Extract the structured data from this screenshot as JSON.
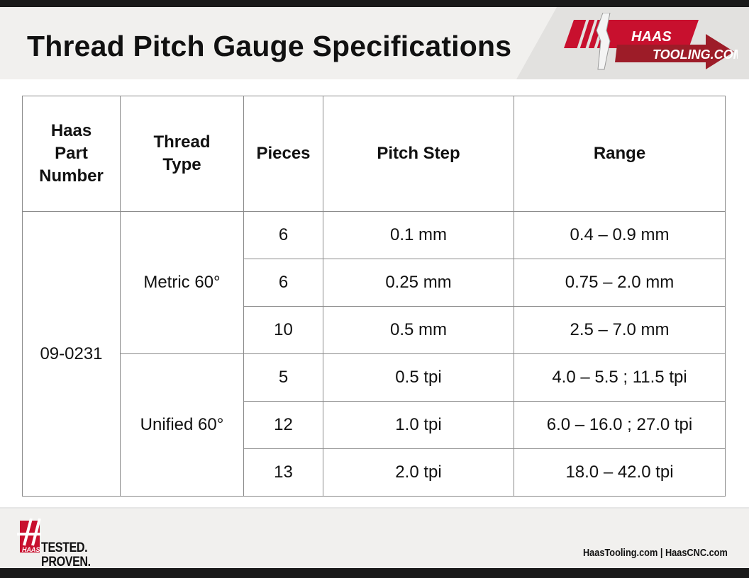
{
  "header": {
    "title": "Thread Pitch Gauge Specifications",
    "logo_text": "HAAS TOOLING.COM"
  },
  "table": {
    "columns": [
      "Haas Part Number",
      "Thread Type",
      "Pieces",
      "Pitch Step",
      "Range"
    ],
    "part_number": "09-0231",
    "groups": [
      {
        "thread_type": "Metric 60°",
        "rows": [
          {
            "pieces": "6",
            "pitch_step": "0.1 mm",
            "range": "0.4 – 0.9 mm"
          },
          {
            "pieces": "6",
            "pitch_step": "0.25 mm",
            "range": "0.75 – 2.0 mm"
          },
          {
            "pieces": "10",
            "pitch_step": "0.5 mm",
            "range": "2.5 – 7.0 mm"
          }
        ]
      },
      {
        "thread_type": "Unified 60°",
        "rows": [
          {
            "pieces": "5",
            "pitch_step": "0.5 tpi",
            "range": "4.0 – 5.5 ; 11.5 tpi"
          },
          {
            "pieces": "12",
            "pitch_step": "1.0 tpi",
            "range": "6.0 – 16.0 ; 27.0 tpi"
          },
          {
            "pieces": "13",
            "pitch_step": "2.0 tpi",
            "range": "18.0 – 42.0 tpi"
          }
        ]
      }
    ]
  },
  "footer": {
    "slogan_line1": "TESTED.",
    "slogan_line2": "PROVEN.",
    "logo_text": "HAAS",
    "links": "HaasTooling.com | HaasCNC.com"
  },
  "colors": {
    "brand_red": "#c8102e",
    "dark": "#1a1a1a"
  }
}
